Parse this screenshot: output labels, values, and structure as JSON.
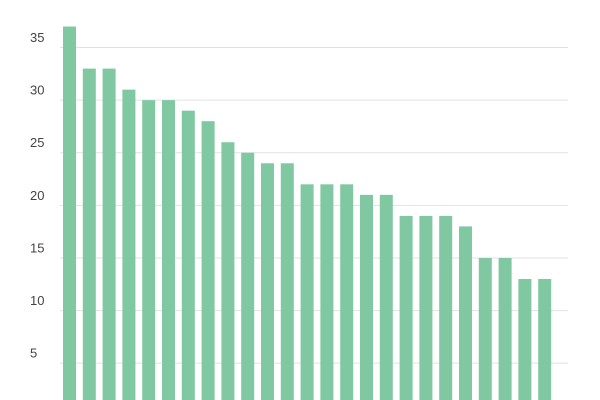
{
  "chart_data": {
    "type": "bar",
    "categories": [
      null,
      null,
      null,
      null,
      null,
      null,
      null,
      null,
      null,
      null,
      null,
      null,
      null,
      null,
      null,
      null,
      null,
      null,
      null,
      null,
      null,
      null,
      null,
      null,
      null
    ],
    "values": [
      37,
      33,
      33,
      31,
      30,
      30,
      29,
      28,
      26,
      25,
      24,
      24,
      22,
      22,
      22,
      21,
      21,
      19,
      19,
      19,
      18,
      15,
      15,
      13,
      13
    ],
    "color": "#7fc8a1",
    "ylim": [
      1.5,
      38
    ],
    "yticks": [
      5,
      10,
      15,
      20,
      25,
      30,
      35
    ],
    "grid": true
  }
}
